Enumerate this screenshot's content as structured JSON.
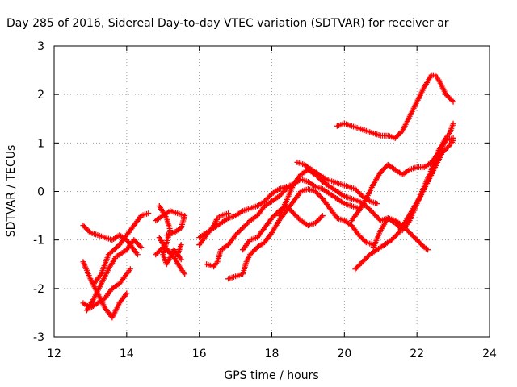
{
  "chart_data": {
    "type": "scatter",
    "title": "Day 285 of 2016, Sidereal Day-to-day VTEC variation (SDTVAR) for receiver ar",
    "xlabel": "GPS time / hours",
    "ylabel": "SDTVAR / TECUs",
    "xlim": [
      12,
      24
    ],
    "ylim": [
      -3,
      3
    ],
    "xticks": [
      12,
      14,
      16,
      18,
      20,
      22,
      24
    ],
    "yticks": [
      -3,
      -2,
      -1,
      0,
      1,
      2,
      3
    ],
    "grid": true,
    "marker": "plus",
    "color": "#ff0000",
    "series": [
      {
        "values": [
          [
            12.8,
            -0.7
          ],
          [
            13.0,
            -0.85
          ],
          [
            13.2,
            -0.9
          ],
          [
            13.4,
            -0.95
          ],
          [
            13.6,
            -1.0
          ],
          [
            13.8,
            -0.9
          ],
          [
            14.0,
            -1.0
          ],
          [
            14.2,
            -1.2
          ],
          [
            14.3,
            -1.3
          ]
        ]
      },
      {
        "values": [
          [
            12.8,
            -2.3
          ],
          [
            13.0,
            -2.4
          ],
          [
            13.2,
            -2.3
          ],
          [
            13.4,
            -2.2
          ],
          [
            13.6,
            -2.0
          ],
          [
            13.8,
            -1.9
          ],
          [
            14.0,
            -1.7
          ],
          [
            14.1,
            -1.6
          ]
        ]
      },
      {
        "values": [
          [
            12.8,
            -1.45
          ],
          [
            13.0,
            -1.8
          ],
          [
            13.2,
            -2.1
          ],
          [
            13.4,
            -2.4
          ],
          [
            13.6,
            -2.6
          ],
          [
            13.8,
            -2.3
          ],
          [
            14.0,
            -2.1
          ]
        ]
      },
      {
        "values": [
          [
            13.1,
            -1.9
          ],
          [
            13.3,
            -1.7
          ],
          [
            13.5,
            -1.3
          ],
          [
            13.8,
            -1.1
          ],
          [
            14.0,
            -0.9
          ],
          [
            14.2,
            -0.7
          ],
          [
            14.4,
            -0.5
          ],
          [
            14.6,
            -0.45
          ]
        ]
      },
      {
        "values": [
          [
            12.9,
            -2.45
          ],
          [
            13.1,
            -2.2
          ],
          [
            13.3,
            -1.9
          ],
          [
            13.5,
            -1.6
          ],
          [
            13.7,
            -1.35
          ],
          [
            14.0,
            -1.2
          ],
          [
            14.2,
            -1.0
          ],
          [
            14.4,
            -1.15
          ]
        ]
      },
      {
        "values": [
          [
            14.8,
            -0.6
          ],
          [
            15.0,
            -0.5
          ],
          [
            15.2,
            -0.4
          ],
          [
            15.4,
            -0.45
          ],
          [
            15.6,
            -0.5
          ],
          [
            15.5,
            -0.75
          ],
          [
            15.3,
            -0.85
          ],
          [
            15.1,
            -0.9
          ]
        ]
      },
      {
        "values": [
          [
            14.9,
            -0.95
          ],
          [
            15.1,
            -1.2
          ],
          [
            15.3,
            -1.35
          ],
          [
            15.5,
            -1.6
          ],
          [
            15.6,
            -1.7
          ]
        ]
      },
      {
        "values": [
          [
            14.8,
            -1.3
          ],
          [
            15.0,
            -1.15
          ],
          [
            15.2,
            -1.25
          ],
          [
            15.4,
            -1.3
          ],
          [
            15.5,
            -1.1
          ]
        ]
      },
      {
        "values": [
          [
            14.9,
            -0.3
          ],
          [
            15.1,
            -0.55
          ],
          [
            15.2,
            -0.8
          ],
          [
            15.0,
            -1.3
          ],
          [
            15.1,
            -1.5
          ],
          [
            15.3,
            -1.2
          ],
          [
            15.5,
            -1.4
          ]
        ]
      },
      {
        "values": [
          [
            16.0,
            -0.95
          ],
          [
            16.2,
            -0.85
          ],
          [
            16.4,
            -0.75
          ],
          [
            16.6,
            -0.65
          ],
          [
            16.8,
            -0.55
          ],
          [
            17.0,
            -0.5
          ],
          [
            17.2,
            -0.4
          ],
          [
            17.4,
            -0.35
          ],
          [
            17.6,
            -0.3
          ],
          [
            17.8,
            -0.2
          ],
          [
            18.0,
            -0.05
          ],
          [
            18.2,
            0.05
          ],
          [
            18.4,
            0.1
          ],
          [
            18.6,
            0.15
          ]
        ]
      },
      {
        "values": [
          [
            16.0,
            -1.1
          ],
          [
            16.2,
            -0.9
          ],
          [
            16.4,
            -0.7
          ],
          [
            16.5,
            -0.55
          ],
          [
            16.6,
            -0.5
          ],
          [
            16.8,
            -0.45
          ]
        ]
      },
      {
        "values": [
          [
            16.2,
            -1.5
          ],
          [
            16.4,
            -1.55
          ],
          [
            16.5,
            -1.45
          ],
          [
            16.6,
            -1.2
          ],
          [
            16.8,
            -1.1
          ],
          [
            17.0,
            -0.9
          ],
          [
            17.2,
            -0.75
          ],
          [
            17.4,
            -0.6
          ],
          [
            17.6,
            -0.5
          ],
          [
            17.8,
            -0.3
          ],
          [
            18.0,
            -0.2
          ],
          [
            18.2,
            -0.1
          ],
          [
            18.4,
            0.05
          ],
          [
            18.6,
            0.15
          ],
          [
            18.8,
            0.25
          ],
          [
            19.0,
            0.2
          ],
          [
            19.2,
            0.1
          ],
          [
            19.4,
            0.05
          ],
          [
            19.6,
            -0.05
          ],
          [
            19.8,
            -0.15
          ],
          [
            20.0,
            -0.25
          ],
          [
            20.2,
            -0.3
          ],
          [
            20.4,
            -0.35
          ]
        ]
      },
      {
        "values": [
          [
            16.8,
            -1.8
          ],
          [
            17.0,
            -1.75
          ],
          [
            17.2,
            -1.7
          ],
          [
            17.3,
            -1.45
          ],
          [
            17.4,
            -1.3
          ],
          [
            17.6,
            -1.15
          ],
          [
            17.8,
            -1.05
          ],
          [
            18.0,
            -0.85
          ],
          [
            18.2,
            -0.6
          ],
          [
            18.4,
            -0.4
          ],
          [
            18.6,
            -0.2
          ],
          [
            18.8,
            0.0
          ],
          [
            19.0,
            0.05
          ],
          [
            19.2,
            0.0
          ],
          [
            19.4,
            -0.15
          ],
          [
            19.6,
            -0.35
          ],
          [
            19.8,
            -0.55
          ],
          [
            20.0,
            -0.6
          ],
          [
            20.2,
            -0.7
          ],
          [
            20.4,
            -0.9
          ],
          [
            20.6,
            -1.05
          ],
          [
            20.8,
            -1.1
          ]
        ]
      },
      {
        "values": [
          [
            17.2,
            -1.2
          ],
          [
            17.4,
            -1.0
          ],
          [
            17.6,
            -0.95
          ],
          [
            17.8,
            -0.75
          ],
          [
            18.0,
            -0.55
          ],
          [
            18.2,
            -0.4
          ],
          [
            18.4,
            -0.3
          ],
          [
            18.6,
            -0.45
          ],
          [
            18.8,
            -0.6
          ],
          [
            19.0,
            -0.7
          ],
          [
            19.2,
            -0.65
          ],
          [
            19.4,
            -0.5
          ]
        ]
      },
      {
        "values": [
          [
            18.2,
            -0.5
          ],
          [
            18.4,
            -0.2
          ],
          [
            18.6,
            0.15
          ],
          [
            18.8,
            0.35
          ],
          [
            19.0,
            0.45
          ],
          [
            19.2,
            0.35
          ],
          [
            19.4,
            0.2
          ],
          [
            19.6,
            0.1
          ],
          [
            19.8,
            0.0
          ],
          [
            20.0,
            -0.1
          ],
          [
            20.2,
            -0.15
          ],
          [
            20.4,
            -0.2
          ],
          [
            20.6,
            -0.3
          ],
          [
            20.8,
            -0.45
          ],
          [
            21.0,
            -0.6
          ],
          [
            21.2,
            -0.55
          ],
          [
            21.4,
            -0.6
          ],
          [
            21.6,
            -0.7
          ],
          [
            21.8,
            -0.85
          ],
          [
            22.0,
            -1.0
          ],
          [
            22.2,
            -1.15
          ],
          [
            22.3,
            -1.2
          ]
        ]
      },
      {
        "values": [
          [
            18.7,
            0.6
          ],
          [
            18.9,
            0.55
          ],
          [
            19.1,
            0.45
          ],
          [
            19.3,
            0.35
          ],
          [
            19.5,
            0.25
          ],
          [
            19.7,
            0.2
          ],
          [
            19.9,
            0.15
          ],
          [
            20.1,
            0.1
          ],
          [
            20.3,
            0.05
          ],
          [
            20.5,
            -0.1
          ],
          [
            20.7,
            -0.2
          ],
          [
            20.9,
            -0.25
          ]
        ]
      },
      {
        "values": [
          [
            19.8,
            1.35
          ],
          [
            20.0,
            1.4
          ],
          [
            20.2,
            1.35
          ],
          [
            20.4,
            1.3
          ],
          [
            20.6,
            1.25
          ],
          [
            20.8,
            1.2
          ],
          [
            21.0,
            1.15
          ],
          [
            21.2,
            1.15
          ],
          [
            21.4,
            1.1
          ],
          [
            21.6,
            1.25
          ],
          [
            21.8,
            1.55
          ],
          [
            22.0,
            1.85
          ],
          [
            22.2,
            2.15
          ],
          [
            22.4,
            2.4
          ],
          [
            22.5,
            2.4
          ],
          [
            22.6,
            2.3
          ],
          [
            22.8,
            2.0
          ],
          [
            23.0,
            1.85
          ]
        ]
      },
      {
        "values": [
          [
            20.2,
            -0.6
          ],
          [
            20.4,
            -0.4
          ],
          [
            20.6,
            -0.15
          ],
          [
            20.8,
            0.15
          ],
          [
            21.0,
            0.4
          ],
          [
            21.2,
            0.55
          ],
          [
            21.4,
            0.45
          ],
          [
            21.6,
            0.35
          ],
          [
            21.8,
            0.45
          ],
          [
            22.0,
            0.5
          ],
          [
            22.2,
            0.5
          ],
          [
            22.4,
            0.6
          ],
          [
            22.6,
            0.8
          ],
          [
            22.8,
            1.05
          ],
          [
            23.0,
            1.1
          ]
        ]
      },
      {
        "values": [
          [
            20.3,
            -1.6
          ],
          [
            20.5,
            -1.45
          ],
          [
            20.7,
            -1.3
          ],
          [
            20.9,
            -1.2
          ],
          [
            21.1,
            -1.1
          ],
          [
            21.3,
            -1.0
          ],
          [
            21.5,
            -0.85
          ],
          [
            21.7,
            -0.6
          ],
          [
            21.9,
            -0.35
          ],
          [
            22.1,
            -0.1
          ],
          [
            22.3,
            0.2
          ],
          [
            22.5,
            0.5
          ],
          [
            22.7,
            0.8
          ],
          [
            22.9,
            0.95
          ],
          [
            23.0,
            1.05
          ]
        ]
      },
      {
        "values": [
          [
            20.8,
            -1.15
          ],
          [
            21.0,
            -0.8
          ],
          [
            21.2,
            -0.55
          ],
          [
            21.4,
            -0.65
          ],
          [
            21.6,
            -0.8
          ],
          [
            21.8,
            -0.6
          ],
          [
            22.0,
            -0.25
          ],
          [
            22.2,
            0.1
          ],
          [
            22.4,
            0.45
          ],
          [
            22.6,
            0.85
          ],
          [
            22.8,
            1.1
          ],
          [
            22.9,
            1.2
          ],
          [
            23.0,
            1.4
          ]
        ]
      }
    ]
  }
}
